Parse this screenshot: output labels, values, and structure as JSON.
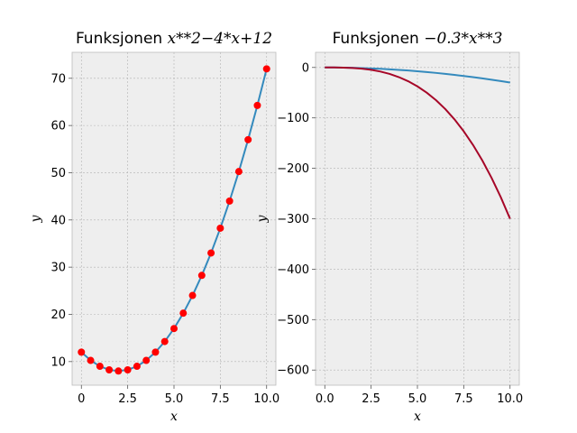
{
  "chart_data": [
    {
      "type": "line",
      "title_prefix": "Funksjonen ",
      "title_math": "x**2−4*x+12",
      "xlabel": "x",
      "ylabel": "y",
      "xlim": [
        -0.5,
        10.5
      ],
      "ylim": [
        5,
        75.5
      ],
      "xticks": [
        0,
        2.5,
        5,
        7.5,
        10
      ],
      "xtick_labels": [
        "0",
        "2.5",
        "5.0",
        "7.5",
        "10.0"
      ],
      "yticks": [
        10,
        20,
        30,
        40,
        50,
        60,
        70
      ],
      "ytick_labels": [
        "10",
        "20",
        "30",
        "40",
        "50",
        "60",
        "70"
      ],
      "grid": true,
      "series": [
        {
          "style": "line",
          "color": "#348ABD",
          "x": [
            0,
            0.5,
            1,
            1.5,
            2,
            2.5,
            3,
            3.5,
            4,
            4.5,
            5,
            5.5,
            6,
            6.5,
            7,
            7.5,
            8,
            8.5,
            9,
            9.5,
            10
          ],
          "y": [
            12,
            10.25,
            9,
            8.25,
            8,
            8.25,
            9,
            10.25,
            12,
            14.25,
            17,
            20.25,
            24,
            28.25,
            33,
            38.25,
            44,
            50.25,
            57,
            64.25,
            72
          ]
        },
        {
          "style": "markers",
          "color": "#FF0000",
          "x": [
            0,
            0.5,
            1,
            1.5,
            2,
            2.5,
            3,
            3.5,
            4,
            4.5,
            5,
            5.5,
            6,
            6.5,
            7,
            7.5,
            8,
            8.5,
            9,
            9.5,
            10
          ],
          "y": [
            12,
            10.25,
            9,
            8.25,
            8,
            8.25,
            9,
            10.25,
            12,
            14.25,
            17,
            20.25,
            24,
            28.25,
            33,
            38.25,
            44,
            50.25,
            57,
            64.25,
            72
          ]
        }
      ]
    },
    {
      "type": "line",
      "title_prefix": "Funksjonen ",
      "title_math": "−0.3*x**3",
      "xlabel": "x",
      "ylabel": "y",
      "xlim": [
        -0.5,
        10.5
      ],
      "ylim": [
        -630,
        30
      ],
      "xticks": [
        0,
        2.5,
        5,
        7.5,
        10
      ],
      "xtick_labels": [
        "0.0",
        "2.5",
        "5.0",
        "7.5",
        "10.0"
      ],
      "yticks": [
        0,
        -100,
        -200,
        -300,
        -400,
        -500,
        -600
      ],
      "ytick_labels": [
        "0",
        "−100",
        "−200",
        "−300",
        "−400",
        "−500",
        "−600"
      ],
      "grid": true,
      "series": [
        {
          "style": "line",
          "color": "#348ABD",
          "x": [
            0,
            0.5,
            1,
            1.5,
            2,
            2.5,
            3,
            3.5,
            4,
            4.5,
            5,
            5.5,
            6,
            6.5,
            7,
            7.5,
            8,
            8.5,
            9,
            9.5,
            10
          ],
          "y": [
            0,
            -0.075,
            -0.3,
            -0.675,
            -1.2,
            -1.875,
            -2.7,
            -3.675,
            -4.8,
            -6.075,
            -7.5,
            -9.075,
            -10.8,
            -12.675,
            -14.7,
            -16.875,
            -19.2,
            -21.675,
            -24.3,
            -27.075,
            -30
          ]
        },
        {
          "style": "line",
          "color": "#A60628",
          "x": [
            0,
            0.5,
            1,
            1.5,
            2,
            2.5,
            3,
            3.5,
            4,
            4.5,
            5,
            5.5,
            6,
            6.5,
            7,
            7.5,
            8,
            8.5,
            9,
            9.5,
            10
          ],
          "y": [
            0,
            -0.0375,
            -0.3,
            -1.0125,
            -2.4,
            -4.6875,
            -8.1,
            -12.8625,
            -19.2,
            -27.3375,
            -37.5,
            -49.9125,
            -64.8,
            -82.3875,
            -102.9,
            -126.5625,
            -153.6,
            -184.2375,
            -218.7,
            -257.2125,
            -300
          ]
        }
      ]
    }
  ]
}
